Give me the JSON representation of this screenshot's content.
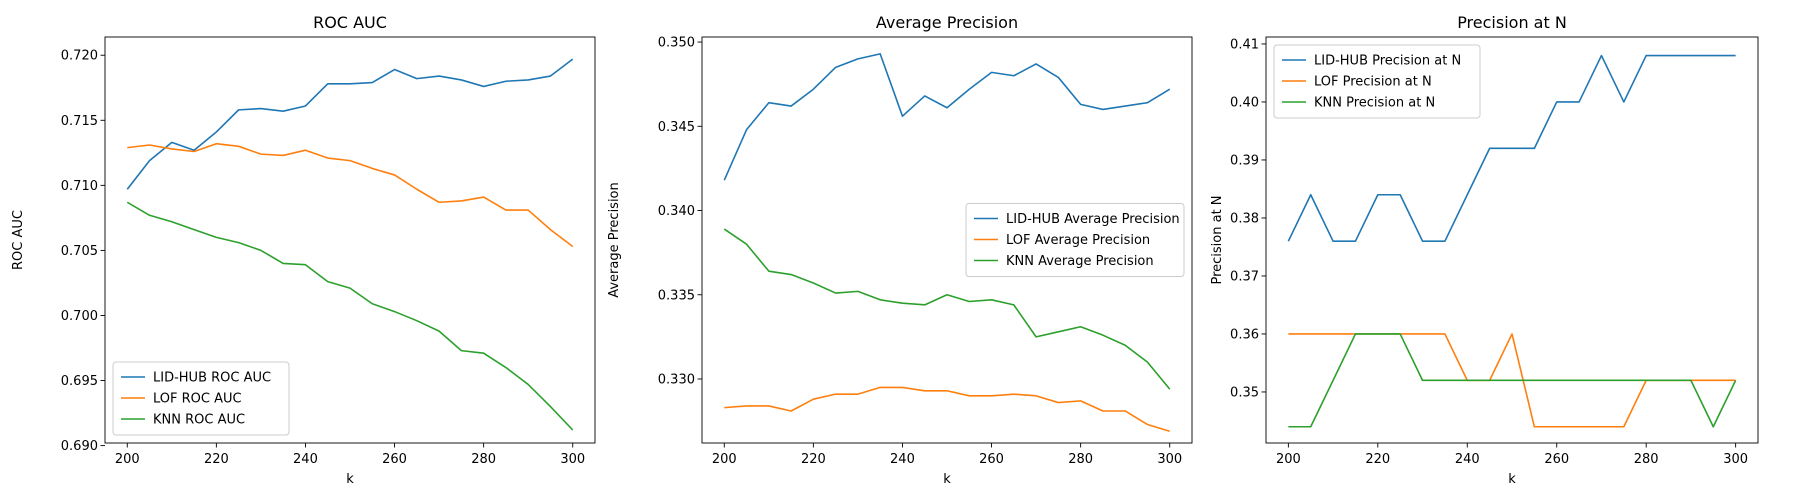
{
  "colors": {
    "blue": "#1f77b4",
    "orange": "#ff7f0e",
    "green": "#2ca02c"
  },
  "chart_data": [
    {
      "type": "line",
      "title": "ROC AUC",
      "xlabel": "k",
      "ylabel": "ROC AUC",
      "xlim": [
        195,
        305
      ],
      "ylim": [
        0.6902,
        0.7214
      ],
      "xticks": [
        200,
        220,
        240,
        260,
        280,
        300
      ],
      "xtick_labels": [
        "200",
        "220",
        "240",
        "260",
        "280",
        "300"
      ],
      "yticks": [
        0.69,
        0.695,
        0.7,
        0.705,
        0.71,
        0.715,
        0.72
      ],
      "ytick_labels": [
        "0.690",
        "0.695",
        "0.700",
        "0.705",
        "0.710",
        "0.715",
        "0.720"
      ],
      "legend_position": "lower-left",
      "x": [
        200,
        205,
        210,
        215,
        220,
        225,
        230,
        235,
        240,
        245,
        250,
        255,
        260,
        265,
        270,
        275,
        280,
        285,
        290,
        295,
        300
      ],
      "series": [
        {
          "name": "LID-HUB ROC AUC",
          "color": "#1f77b4",
          "values": [
            0.7097,
            0.7119,
            0.7133,
            0.7127,
            0.7141,
            0.7158,
            0.7159,
            0.7157,
            0.7161,
            0.7178,
            0.7178,
            0.7179,
            0.7189,
            0.7182,
            0.7184,
            0.7181,
            0.7176,
            0.718,
            0.7181,
            0.7184,
            0.7197
          ]
        },
        {
          "name": "LOF ROC AUC",
          "color": "#ff7f0e",
          "values": [
            0.7129,
            0.7131,
            0.7128,
            0.7126,
            0.7132,
            0.713,
            0.7124,
            0.7123,
            0.7127,
            0.7121,
            0.7119,
            0.7113,
            0.7108,
            0.7097,
            0.7087,
            0.7088,
            0.7091,
            0.7081,
            0.7081,
            0.7066,
            0.7053
          ]
        },
        {
          "name": "KNN ROC AUC",
          "color": "#2ca02c",
          "values": [
            0.7087,
            0.7077,
            0.7072,
            0.7066,
            0.706,
            0.7056,
            0.705,
            0.704,
            0.7039,
            0.7026,
            0.7021,
            0.7009,
            0.7003,
            0.6996,
            0.6988,
            0.6973,
            0.6971,
            0.696,
            0.6947,
            0.693,
            0.6912
          ]
        }
      ]
    },
    {
      "type": "line",
      "title": "Average Precision",
      "xlabel": "k",
      "ylabel": "Average Precision",
      "xlim": [
        195,
        305
      ],
      "ylim": [
        0.3262,
        0.3503
      ],
      "xticks": [
        200,
        220,
        240,
        260,
        280,
        300
      ],
      "xtick_labels": [
        "200",
        "220",
        "240",
        "260",
        "280",
        "300"
      ],
      "yticks": [
        0.33,
        0.335,
        0.34,
        0.345,
        0.35
      ],
      "ytick_labels": [
        "0.330",
        "0.335",
        "0.340",
        "0.345",
        "0.350"
      ],
      "legend_position": "center-right",
      "x": [
        200,
        205,
        210,
        215,
        220,
        225,
        230,
        235,
        240,
        245,
        250,
        255,
        260,
        265,
        270,
        275,
        280,
        285,
        290,
        295,
        300
      ],
      "series": [
        {
          "name": "LID-HUB Average Precision",
          "color": "#1f77b4",
          "values": [
            0.3418,
            0.3448,
            0.3464,
            0.3462,
            0.3472,
            0.3485,
            0.349,
            0.3493,
            0.3456,
            0.3468,
            0.3461,
            0.3472,
            0.3482,
            0.348,
            0.3487,
            0.3479,
            0.3463,
            0.346,
            0.3462,
            0.3464,
            0.3472
          ]
        },
        {
          "name": "LOF Average Precision",
          "color": "#ff7f0e",
          "values": [
            0.3283,
            0.3284,
            0.3284,
            0.3281,
            0.3288,
            0.3291,
            0.3291,
            0.3295,
            0.3295,
            0.3293,
            0.3293,
            0.329,
            0.329,
            0.3291,
            0.329,
            0.3286,
            0.3287,
            0.3281,
            0.3281,
            0.3273,
            0.3269
          ]
        },
        {
          "name": "KNN Average Precision",
          "color": "#2ca02c",
          "values": [
            0.3389,
            0.338,
            0.3364,
            0.3362,
            0.3357,
            0.3351,
            0.3352,
            0.3347,
            0.3345,
            0.3344,
            0.335,
            0.3346,
            0.3347,
            0.3344,
            0.3325,
            0.3328,
            0.3331,
            0.3326,
            0.332,
            0.331,
            0.3294
          ]
        }
      ]
    },
    {
      "type": "line",
      "title": "Precision at N",
      "xlabel": "k",
      "ylabel": "Precision at N",
      "xlim": [
        195,
        305
      ],
      "ylim": [
        0.3412,
        0.4112
      ],
      "xticks": [
        200,
        220,
        240,
        260,
        280,
        300
      ],
      "xtick_labels": [
        "200",
        "220",
        "240",
        "260",
        "280",
        "300"
      ],
      "yticks": [
        0.35,
        0.36,
        0.37,
        0.38,
        0.39,
        0.4,
        0.41
      ],
      "ytick_labels": [
        "0.35",
        "0.36",
        "0.37",
        "0.38",
        "0.39",
        "0.40",
        "0.41"
      ],
      "legend_position": "upper-left",
      "x": [
        200,
        205,
        210,
        215,
        220,
        225,
        230,
        235,
        240,
        245,
        250,
        255,
        260,
        265,
        270,
        275,
        280,
        285,
        290,
        295,
        300
      ],
      "series": [
        {
          "name": "LID-HUB Precision at N",
          "color": "#1f77b4",
          "values": [
            0.376,
            0.384,
            0.376,
            0.376,
            0.384,
            0.384,
            0.376,
            0.376,
            0.384,
            0.392,
            0.392,
            0.392,
            0.4,
            0.4,
            0.408,
            0.4,
            0.408,
            0.408,
            0.408,
            0.408,
            0.408
          ]
        },
        {
          "name": "LOF Precision at N",
          "color": "#ff7f0e",
          "values": [
            0.36,
            0.36,
            0.36,
            0.36,
            0.36,
            0.36,
            0.36,
            0.36,
            0.352,
            0.352,
            0.36,
            0.344,
            0.344,
            0.344,
            0.344,
            0.344,
            0.352,
            0.352,
            0.352,
            0.352,
            0.352
          ]
        },
        {
          "name": "KNN Precision at N",
          "color": "#2ca02c",
          "values": [
            0.344,
            0.344,
            0.352,
            0.36,
            0.36,
            0.36,
            0.352,
            0.352,
            0.352,
            0.352,
            0.352,
            0.352,
            0.352,
            0.352,
            0.352,
            0.352,
            0.352,
            0.352,
            0.352,
            0.344,
            0.352
          ]
        }
      ]
    }
  ]
}
